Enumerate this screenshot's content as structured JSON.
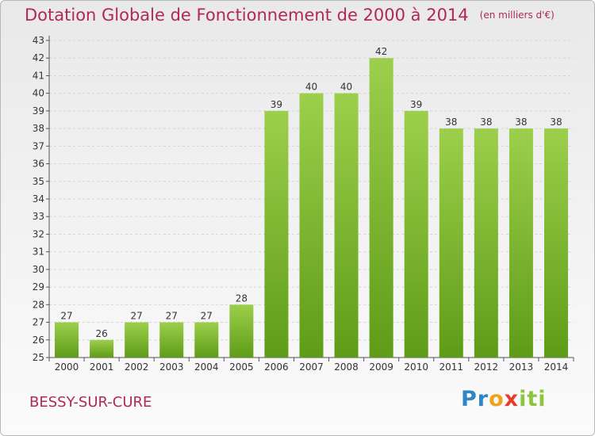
{
  "header": {
    "title": "Dotation Globale de Fonctionnement de 2000 à 2014",
    "unit": "(en milliers d'€)"
  },
  "footer": {
    "place": "BESSY-SUR-CURE",
    "logo": [
      "Pr",
      "o",
      "x",
      "iti"
    ]
  },
  "colors": {
    "bar_top": "#9ccf4c",
    "bar_bottom": "#5e9c17",
    "title": "#b0285a"
  },
  "chart_data": {
    "type": "bar",
    "title": "Dotation Globale de Fonctionnement de 2000 à 2014",
    "subtitle": "(en milliers d'€)",
    "categories": [
      "2000",
      "2001",
      "2002",
      "2003",
      "2004",
      "2005",
      "2006",
      "2007",
      "2008",
      "2009",
      "2010",
      "2011",
      "2012",
      "2013",
      "2014"
    ],
    "values": [
      27,
      26,
      27,
      27,
      27,
      28,
      39,
      40,
      40,
      42,
      39,
      38,
      38,
      38,
      38
    ],
    "ylim": [
      25,
      43
    ],
    "yticks": [
      25,
      26,
      27,
      28,
      29,
      30,
      31,
      32,
      33,
      34,
      35,
      36,
      37,
      38,
      39,
      40,
      41,
      42,
      43
    ],
    "grid": true,
    "legend": "none"
  }
}
